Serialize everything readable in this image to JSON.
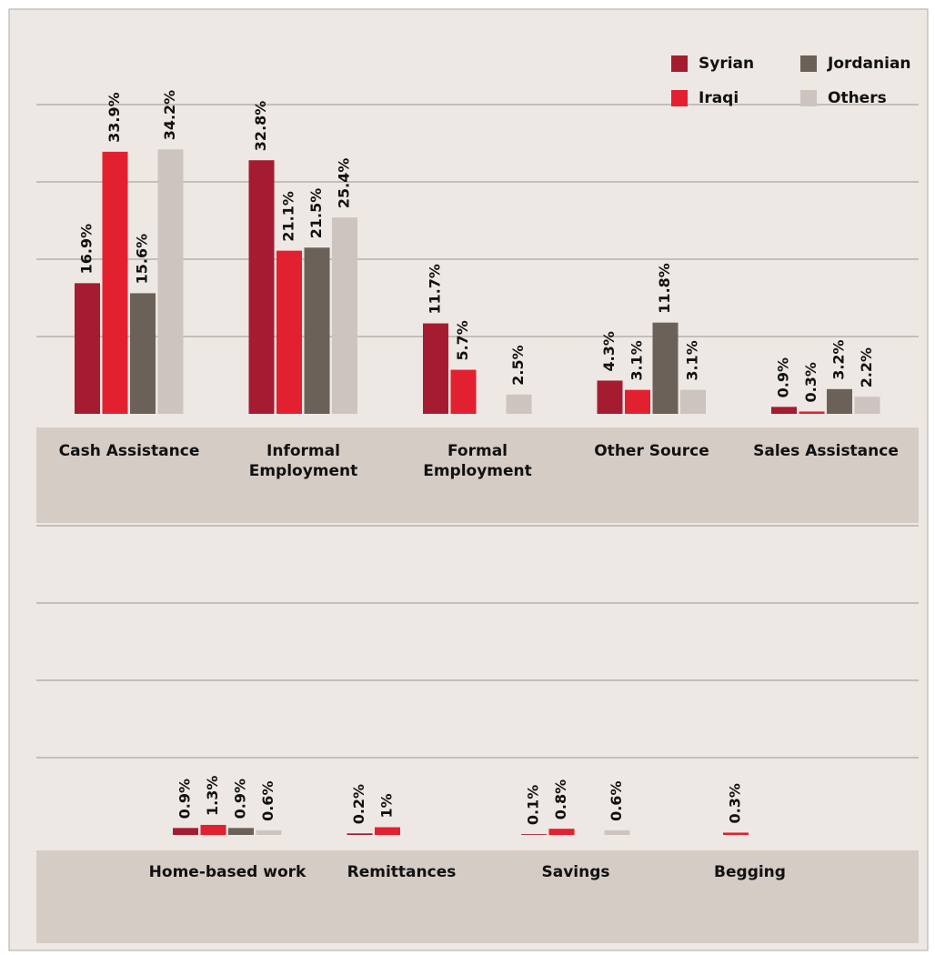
{
  "chart_data": [
    {
      "type": "bar",
      "categories": [
        "Cash Assistance",
        "Informal Employment",
        "Formal Employment",
        "Other Source",
        "Sales Assistance"
      ],
      "series": [
        {
          "name": "Syrian",
          "color": "#a51c30",
          "values": [
            16.9,
            32.8,
            11.7,
            4.3,
            0.9
          ],
          "value_labels": [
            "16.9%",
            "32.8%",
            "11.7%",
            "4.3%",
            "0.9%"
          ]
        },
        {
          "name": "Iraqi",
          "color": "#e3202f",
          "values": [
            33.9,
            21.1,
            5.7,
            3.1,
            0.3
          ],
          "value_labels": [
            "33.9%",
            "21.1%",
            "5.7%",
            "3.1%",
            "0.3%"
          ]
        },
        {
          "name": "Jordanian",
          "color": "#6b6158",
          "values": [
            15.6,
            21.5,
            null,
            11.8,
            3.2
          ],
          "value_labels": [
            "15.6%",
            "21.5%",
            null,
            "11.8%",
            "3.2%"
          ]
        },
        {
          "name": "Others",
          "color": "#cdc4bf",
          "values": [
            34.2,
            25.4,
            2.5,
            3.1,
            2.2
          ],
          "value_labels": [
            "34.2%",
            "25.4%",
            "2.5%",
            "3.1%",
            "2.2%"
          ]
        }
      ],
      "ylim": [
        0,
        40
      ],
      "yticks": [
        10,
        20,
        30,
        40
      ],
      "grid": true,
      "legend": "upper right"
    },
    {
      "type": "bar",
      "categories": [
        "Home-based work",
        "Remittances",
        "Savings",
        "Begging"
      ],
      "series": [
        {
          "color": "#a51c30",
          "values": [
            0.9,
            0.2,
            0.1,
            null
          ],
          "value_labels": [
            "0.9%",
            "0.2%",
            "0.1%",
            null
          ]
        },
        {
          "color": "#e3202f",
          "values": [
            1.3,
            1,
            0.8,
            0.3
          ],
          "value_labels": [
            "1.3%",
            "1%",
            "0.8%",
            "0.3%"
          ]
        },
        {
          "color": "#6b6158",
          "values": [
            0.9,
            null,
            null,
            null
          ],
          "value_labels": [
            "0.9%",
            null,
            null,
            null
          ]
        },
        {
          "color": "#cdc4bf",
          "values": [
            0.6,
            null,
            0.6,
            null
          ],
          "value_labels": [
            "0.6%",
            null,
            "0.6%",
            null
          ]
        }
      ],
      "ylim": [
        0,
        40
      ],
      "yticks": [
        10,
        20,
        30,
        40
      ],
      "grid": true
    }
  ]
}
